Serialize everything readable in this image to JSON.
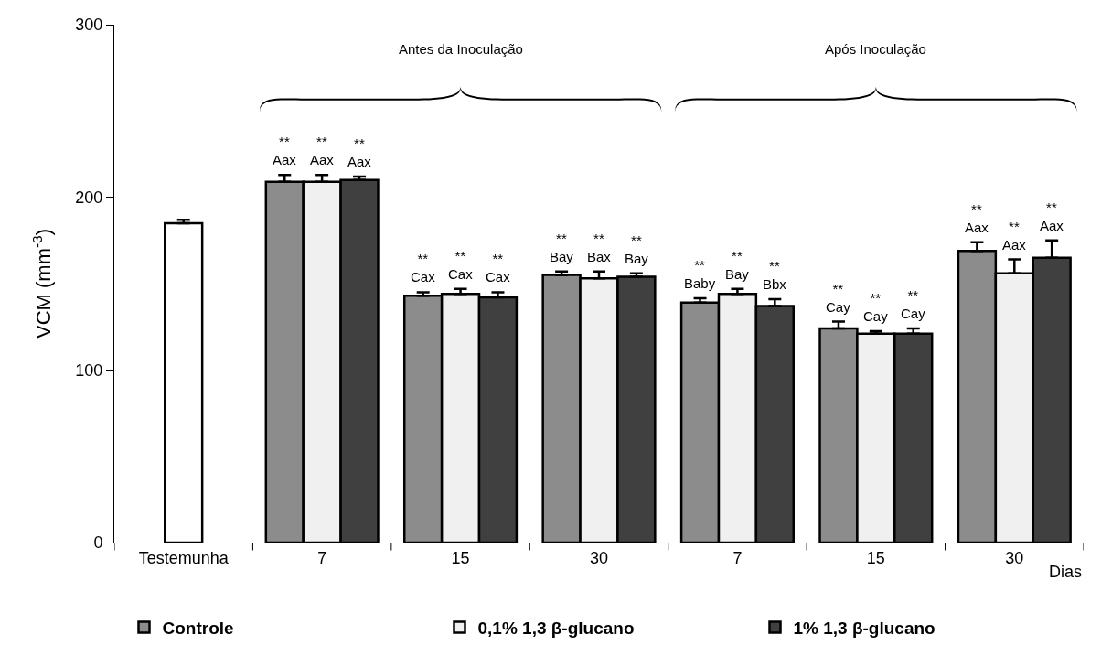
{
  "chart_data": {
    "type": "bar",
    "categories": [
      "Testemunha",
      "7",
      "15",
      "30",
      "7",
      "15",
      "30"
    ],
    "xlabel": "Dias",
    "ylabel": "VCM (mm$^{-3}$)",
    "ylim": [
      0,
      300
    ],
    "yticks": [
      0,
      100,
      200,
      300
    ],
    "grid": false,
    "legend": "bottom",
    "annotations": [
      "Antes da Inoculação",
      "Após Inoculação"
    ],
    "series": [
      {
        "color": "#ffffff",
        "values": [
          185,
          null,
          null,
          null,
          null,
          null,
          null
        ],
        "errors": [
          2,
          null,
          null,
          null,
          null,
          null,
          null
        ]
      },
      {
        "name": "Controle",
        "color": "#8c8c8c",
        "values": [
          null,
          209,
          143,
          155,
          139,
          124,
          169
        ],
        "errors": [
          null,
          4,
          2,
          2,
          2.5,
          4,
          5
        ],
        "value_labels": [
          null,
          "**\nAax",
          "**\nCax",
          "**\nBay",
          "**\nBaby",
          "**\nCay",
          "**\nAax"
        ]
      },
      {
        "name": "0,1% 1,3 β-glucano",
        "color": "#f0f0f0",
        "values": [
          null,
          209,
          144,
          153,
          144,
          121,
          156
        ],
        "errors": [
          null,
          4,
          3,
          4,
          3,
          1.5,
          8
        ],
        "value_labels": [
          null,
          "**\nAax",
          "**\nCax",
          "**\nBax",
          "**\nBay",
          "**\nCay",
          "**\nAax"
        ]
      },
      {
        "name": "1% 1,3 β-glucano",
        "color": "#404040",
        "values": [
          null,
          210,
          142,
          154,
          137,
          121,
          165
        ],
        "errors": [
          null,
          2,
          3,
          2,
          4,
          3,
          10
        ],
        "value_labels": [
          null,
          "**\nAax",
          "**\nCax",
          "**\nBay",
          "**\nBbx",
          "**\nCay",
          "**\nAax"
        ]
      }
    ]
  }
}
